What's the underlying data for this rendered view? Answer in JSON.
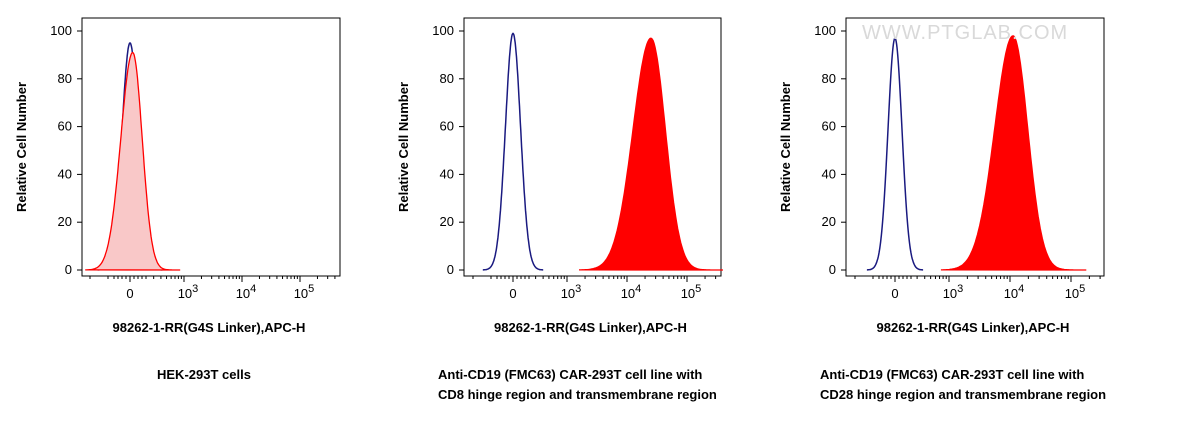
{
  "watermark": "WWW.PTGLAB.COM",
  "colors": {
    "isotype": "#1a1a80",
    "sample": "#ff0000",
    "sample_fill_light": "#f9c8c8"
  },
  "chart_data": [
    {
      "type": "area",
      "xlabel": "98262-1-RR(G4S Linker),APC-H",
      "ylabel": "Relative Cell Number",
      "ylim": [
        0,
        100
      ],
      "yticks": [
        "0",
        "20",
        "40",
        "60",
        "80",
        "100"
      ],
      "xticks": [
        {
          "base": "0",
          "exp": ""
        },
        {
          "base": "10",
          "exp": "3"
        },
        {
          "base": "10",
          "exp": "4"
        },
        {
          "base": "10",
          "exp": "5"
        }
      ],
      "caption": [
        "HEK-293T cells"
      ],
      "series": [
        {
          "role": "isotype",
          "fill": false,
          "peak": 95,
          "center": 0.0,
          "width": 0.15
        },
        {
          "role": "sample",
          "fill": true,
          "light": true,
          "peak": 91,
          "center": 0.05,
          "width": 0.22
        }
      ]
    },
    {
      "type": "area",
      "xlabel": "98262-1-RR(G4S Linker),APC-H",
      "ylabel": "Relative Cell Number",
      "ylim": [
        0,
        100
      ],
      "yticks": [
        "0",
        "20",
        "40",
        "60",
        "80",
        "100"
      ],
      "xticks": [
        {
          "base": "0",
          "exp": ""
        },
        {
          "base": "10",
          "exp": "3"
        },
        {
          "base": "10",
          "exp": "4"
        },
        {
          "base": "10",
          "exp": "5"
        }
      ],
      "caption": [
        "Anti-CD19 (FMC63) CAR-293T cell line with",
        "CD8 hinge region and transmembrane region"
      ],
      "series": [
        {
          "role": "isotype",
          "fill": false,
          "peak": 99,
          "center": 0.0,
          "width": 0.14
        },
        {
          "role": "sample",
          "fill": true,
          "light": false,
          "peak": 97,
          "center": 2.4,
          "width": 0.3
        }
      ]
    },
    {
      "type": "area",
      "xlabel": "98262-1-RR(G4S Linker),APC-H",
      "ylabel": "Relative Cell Number",
      "ylim": [
        0,
        100
      ],
      "yticks": [
        "0",
        "20",
        "40",
        "60",
        "80",
        "100"
      ],
      "xticks": [
        {
          "base": "0",
          "exp": ""
        },
        {
          "base": "10",
          "exp": "3"
        },
        {
          "base": "10",
          "exp": "4"
        },
        {
          "base": "10",
          "exp": "5"
        }
      ],
      "caption": [
        "Anti-CD19 (FMC63) CAR-293T cell line with",
        "CD28 hinge region and transmembrane region"
      ],
      "series": [
        {
          "role": "isotype",
          "fill": false,
          "peak": 97,
          "center": 0.0,
          "width": 0.13
        },
        {
          "role": "sample",
          "fill": true,
          "light": false,
          "peak": 98,
          "center": 2.05,
          "width": 0.3
        }
      ]
    }
  ]
}
